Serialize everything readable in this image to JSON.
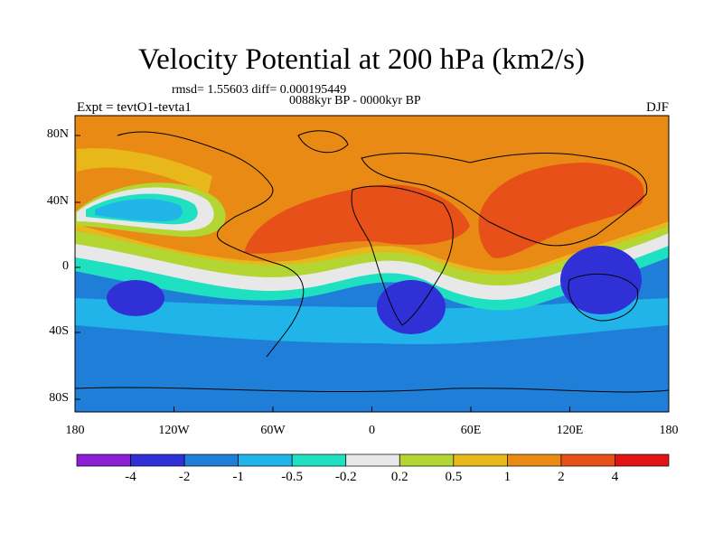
{
  "title": "Velocity Potential at 200 hPa (km2/s)",
  "stats_line": "rmsd= 1.55603 diff= 0.000195449",
  "period_line": "0088kyr BP - 0000kyr BP",
  "experiment_label": "Expt = tevtO1-tevta1",
  "season_label": "DJF",
  "map": {
    "lat_ticks": [
      "80N",
      "40N",
      "0",
      "40S",
      "80S"
    ],
    "lon_ticks": [
      "180",
      "120W",
      "60W",
      "0",
      "60E",
      "120E",
      "180"
    ]
  },
  "colorbar": {
    "labels": [
      "-4",
      "-2",
      "-1",
      "-0.5",
      "-0.2",
      "0.2",
      "0.5",
      "1",
      "2",
      "4"
    ],
    "colors": [
      "#8a1fd6",
      "#2f31d6",
      "#1f7fd8",
      "#20b4e8",
      "#1fe0c0",
      "#e8e8e8",
      "#b4d633",
      "#e8b81a",
      "#e88a14",
      "#e8501a",
      "#e01414"
    ]
  }
}
